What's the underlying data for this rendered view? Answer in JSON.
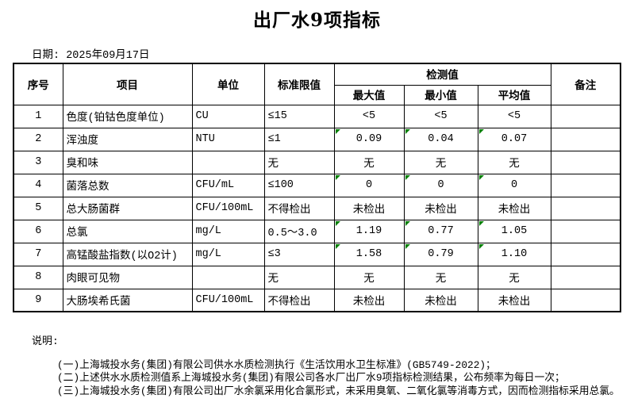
{
  "page": {
    "title": "出厂水9项指标",
    "date_label": "日期: 2025年09月17日"
  },
  "table": {
    "headers": {
      "no": "序号",
      "item": "项目",
      "unit": "单位",
      "limit": "标准限值",
      "detection_group": "检测值",
      "max": "最大值",
      "min": "最小值",
      "avg": "平均值",
      "remark": "备注"
    },
    "rows": [
      {
        "no": "1",
        "item": "色度(铂钴色度单位)",
        "unit": "CU",
        "limit": "≤15",
        "max": "<5",
        "min": "<5",
        "avg": "<5",
        "remark": "",
        "flagged": false
      },
      {
        "no": "2",
        "item": "浑浊度",
        "unit": "NTU",
        "limit": "≤1",
        "max": "0.09",
        "min": "0.04",
        "avg": "0.07",
        "remark": "",
        "flagged": true
      },
      {
        "no": "3",
        "item": "臭和味",
        "unit": "",
        "limit": "无",
        "max": "无",
        "min": "无",
        "avg": "无",
        "remark": "",
        "flagged": false
      },
      {
        "no": "4",
        "item": "菌落总数",
        "unit": "CFU/mL",
        "limit": "≤100",
        "max": "0",
        "min": "0",
        "avg": "0",
        "remark": "",
        "flagged": true
      },
      {
        "no": "5",
        "item": "总大肠菌群",
        "unit": "CFU/100mL",
        "limit": "不得检出",
        "max": "未检出",
        "min": "未检出",
        "avg": "未检出",
        "remark": "",
        "flagged": false
      },
      {
        "no": "6",
        "item": "总氯",
        "unit": "mg/L",
        "limit": "0.5～3.0",
        "max": "1.19",
        "min": "0.77",
        "avg": "1.05",
        "remark": "",
        "flagged": true
      },
      {
        "no": "7",
        "item": "高锰酸盐指数(以O2计)",
        "unit": "mg/L",
        "limit": "≤3",
        "max": "1.58",
        "min": "0.79",
        "avg": "1.10",
        "remark": "",
        "flagged": true
      },
      {
        "no": "8",
        "item": "肉眼可见物",
        "unit": "",
        "limit": "无",
        "max": "无",
        "min": "无",
        "avg": "无",
        "remark": "",
        "flagged": false
      },
      {
        "no": "9",
        "item": "大肠埃希氏菌",
        "unit": "CFU/100mL",
        "limit": "不得检出",
        "max": "未检出",
        "min": "未检出",
        "avg": "未检出",
        "remark": "",
        "flagged": false
      }
    ]
  },
  "notes": {
    "label": "说明:",
    "items": [
      "(一)上海城投水务(集团)有限公司供水水质检测执行《生活饮用水卫生标准》(GB5749-2022)；",
      "(二)上述供水水质检测值系上海城投水务(集团)有限公司各水厂出厂水9项指标检测结果，公布频率为每日一次；",
      "(三)上海城投水务(集团)有限公司出厂水余氯采用化合氯形式，未采用臭氧、二氧化氯等消毒方式，因而检测指标采用总氯。"
    ]
  },
  "colors": {
    "flag_triangle_green": "#008000",
    "border": "#000000",
    "background": "#ffffff"
  }
}
